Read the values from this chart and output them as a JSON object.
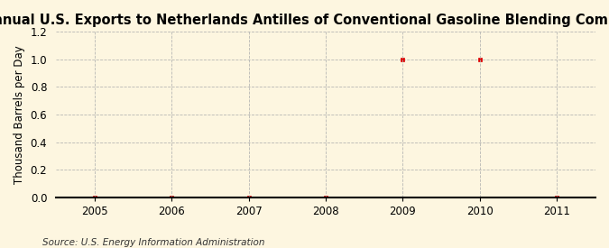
{
  "title": "Annual U.S. Exports to Netherlands Antilles of Conventional Gasoline Blending Components",
  "ylabel": "Thousand Barrels per Day",
  "source": "Source: U.S. Energy Information Administration",
  "x_values": [
    2005,
    2006,
    2007,
    2008,
    2009,
    2010,
    2011
  ],
  "y_values": [
    0.0,
    0.0,
    0.0,
    0.0,
    1.0,
    1.0,
    0.0
  ],
  "xlim": [
    2004.5,
    2011.5
  ],
  "ylim": [
    0.0,
    1.2
  ],
  "yticks": [
    0.0,
    0.2,
    0.4,
    0.6,
    0.8,
    1.0,
    1.2
  ],
  "xticks": [
    2005,
    2006,
    2007,
    2008,
    2009,
    2010,
    2011
  ],
  "marker_color": "#dd0000",
  "marker": "s",
  "marker_size": 3,
  "grid_color": "#b0b0b0",
  "background_color": "#fdf6e0",
  "title_fontsize": 10.5,
  "label_fontsize": 8.5,
  "tick_fontsize": 8.5,
  "source_fontsize": 7.5
}
